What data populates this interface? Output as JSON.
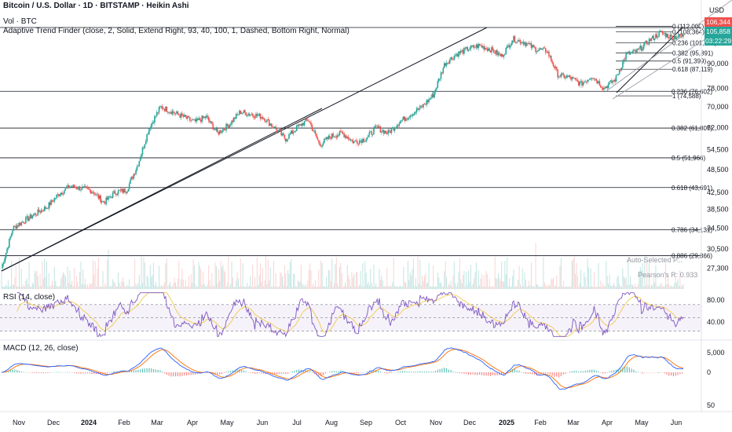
{
  "header": {
    "symbol_line": "Bitcoin / U.S. Dollar · 1D · BITSTAMP · Heikin Ashi",
    "vol_line": "Vol · BTC",
    "indicator_line": "Adaptive Trend Finder (close, 2, Solid, Extend Right, 93, 40, 100, 1, Dashed, Bottom Right, Normal)",
    "currency": "USD"
  },
  "badges": {
    "price_red": "106,344",
    "price_green": "105,858",
    "countdown": "03:22:29"
  },
  "annotations": {
    "auto_selected": "Auto-Selected P...",
    "pearson": "Pearson's R: 0.933"
  },
  "colors": {
    "bull": "#26a69a",
    "bear": "#ef5350",
    "rsi": "#7e57c2",
    "rsi_ma": "#f2c94c",
    "macd": "#2962ff",
    "signal": "#ff6d00",
    "line": "#131722"
  },
  "chart_data": [
    {
      "type": "candlestick",
      "title": "Bitcoin / U.S. Dollar · 1D · BITSTAMP · Heikin Ashi",
      "x_ticks": [
        "Nov",
        "Dec",
        "2024",
        "Feb",
        "Mar",
        "Apr",
        "May",
        "Jun",
        "Jul",
        "Aug",
        "Sep",
        "Oct",
        "Nov",
        "Dec",
        "2025",
        "Feb",
        "Mar",
        "Apr",
        "May",
        "Jun"
      ],
      "y_ticks": [
        27300,
        30500,
        34500,
        38500,
        42500,
        48500,
        54500,
        62000,
        70000,
        78000,
        90000
      ],
      "y_scale": "log",
      "ylim": [
        26000,
        118000
      ],
      "grid": false,
      "approx_closes": [
        27300,
        34500,
        36000,
        37500,
        39000,
        42000,
        44000,
        43500,
        42800,
        40000,
        42500,
        43000,
        50000,
        62000,
        70000,
        68000,
        66000,
        64000,
        66000,
        60000,
        63000,
        68000,
        67000,
        66000,
        62000,
        58000,
        62000,
        65000,
        56000,
        59000,
        60000,
        57000,
        58000,
        62000,
        60000,
        64000,
        67000,
        70000,
        75000,
        90000,
        95000,
        98000,
        100000,
        98000,
        94000,
        104000,
        102000,
        98000,
        97000,
        84000,
        83000,
        80000,
        84000,
        78000,
        82000,
        95000,
        97000,
        103000,
        108000,
        105000,
        105858
      ],
      "volume_note": "Vol · BTC",
      "fibonacci_long": [
        {
          "level": "0.236",
          "price": 76602
        },
        {
          "level": "0.382",
          "price": 61807
        },
        {
          "level": "0.5",
          "price": 51966
        },
        {
          "level": "0.618",
          "price": 43691
        },
        {
          "level": "0.786",
          "price": 34131
        },
        {
          "level": "0.886",
          "price": 29366
        }
      ],
      "fibonacci_short": [
        {
          "level": "0",
          "price": 112000
        },
        {
          "level": "0",
          "price": 108364
        },
        {
          "level": "0.236",
          "price": 101754
        },
        {
          "level": "0.382",
          "price": 95891
        },
        {
          "level": "0.5",
          "price": 91399
        },
        {
          "level": "0.618",
          "price": 87119
        },
        {
          "level": "1",
          "price": 74588
        }
      ]
    },
    {
      "type": "line",
      "title": "RSI (14, close)",
      "y_ticks": [
        40.0,
        80.0
      ],
      "ylim": [
        20,
        90
      ],
      "band": [
        30,
        70
      ]
    },
    {
      "type": "line",
      "title": "MACD (12, 26, close)",
      "y_ticks": [
        5000,
        0,
        50
      ],
      "series": [
        {
          "name": "MACD"
        },
        {
          "name": "Signal"
        }
      ]
    }
  ],
  "labels": {
    "fib_long": [
      "0.236 (76,602)",
      "0.382 (61,807)",
      "0.5 (51,966)",
      "0.618 (43,691)",
      "0.786 (34,131)",
      "0.886 (29,366)"
    ],
    "fib_short": [
      "0 (112,000)",
      "0 (108,364)",
      "0.236 (101,754)",
      "0.382 (95,891)",
      "0.5 (91,399)",
      "0.618 (87,119)",
      "1 (74,588)"
    ],
    "price_ticks": [
      "90,000",
      "78,000",
      "70,000",
      "62,000",
      "54,500",
      "48,500",
      "42,500",
      "38,500",
      "34,500",
      "30,500",
      "27,300"
    ],
    "rsi_title": "RSI (14, close)",
    "rsi_ticks": [
      "80.00",
      "40.00"
    ],
    "macd_title": "MACD (12, 26, close)",
    "macd_ticks": [
      "5,000",
      "0",
      "50"
    ],
    "x_ticks": [
      "Nov",
      "Dec",
      "2024",
      "Feb",
      "Mar",
      "Apr",
      "May",
      "Jun",
      "Jul",
      "Aug",
      "Sep",
      "Oct",
      "Nov",
      "Dec",
      "2025",
      "Feb",
      "Mar",
      "Apr",
      "May",
      "Jun"
    ]
  }
}
